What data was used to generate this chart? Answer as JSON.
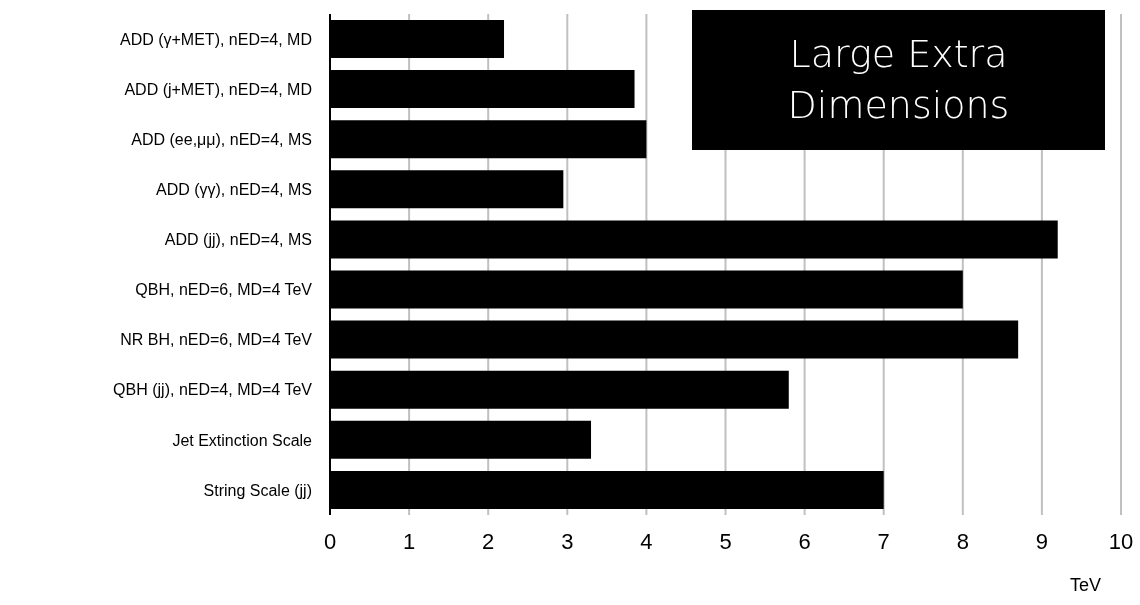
{
  "chart_data": {
    "type": "bar",
    "orientation": "horizontal",
    "title": "Large Extra Dimensions",
    "xlabel": "TeV",
    "categories": [
      "ADD (γ+MET), nED=4, MD",
      "ADD (j+MET), nED=4, MD",
      "ADD (ee,μμ), nED=4, MS",
      "ADD (γγ), nED=4, MS",
      "ADD (jj), nED=4, MS",
      "QBH, nED=6, MD=4 TeV",
      "NR BH, nED=6, MD=4 TeV",
      "QBH (jj), nED=4, MD=4 TeV",
      "Jet Extinction Scale",
      "String Scale (jj)"
    ],
    "values": [
      2.2,
      3.85,
      4.0,
      2.95,
      9.2,
      8.0,
      8.7,
      5.8,
      3.3,
      7.0
    ],
    "color": "#000000",
    "xlim": [
      0,
      10
    ],
    "xticks": [
      0,
      1,
      2,
      3,
      4,
      5,
      6,
      7,
      8,
      9,
      10
    ],
    "grid": "x"
  }
}
